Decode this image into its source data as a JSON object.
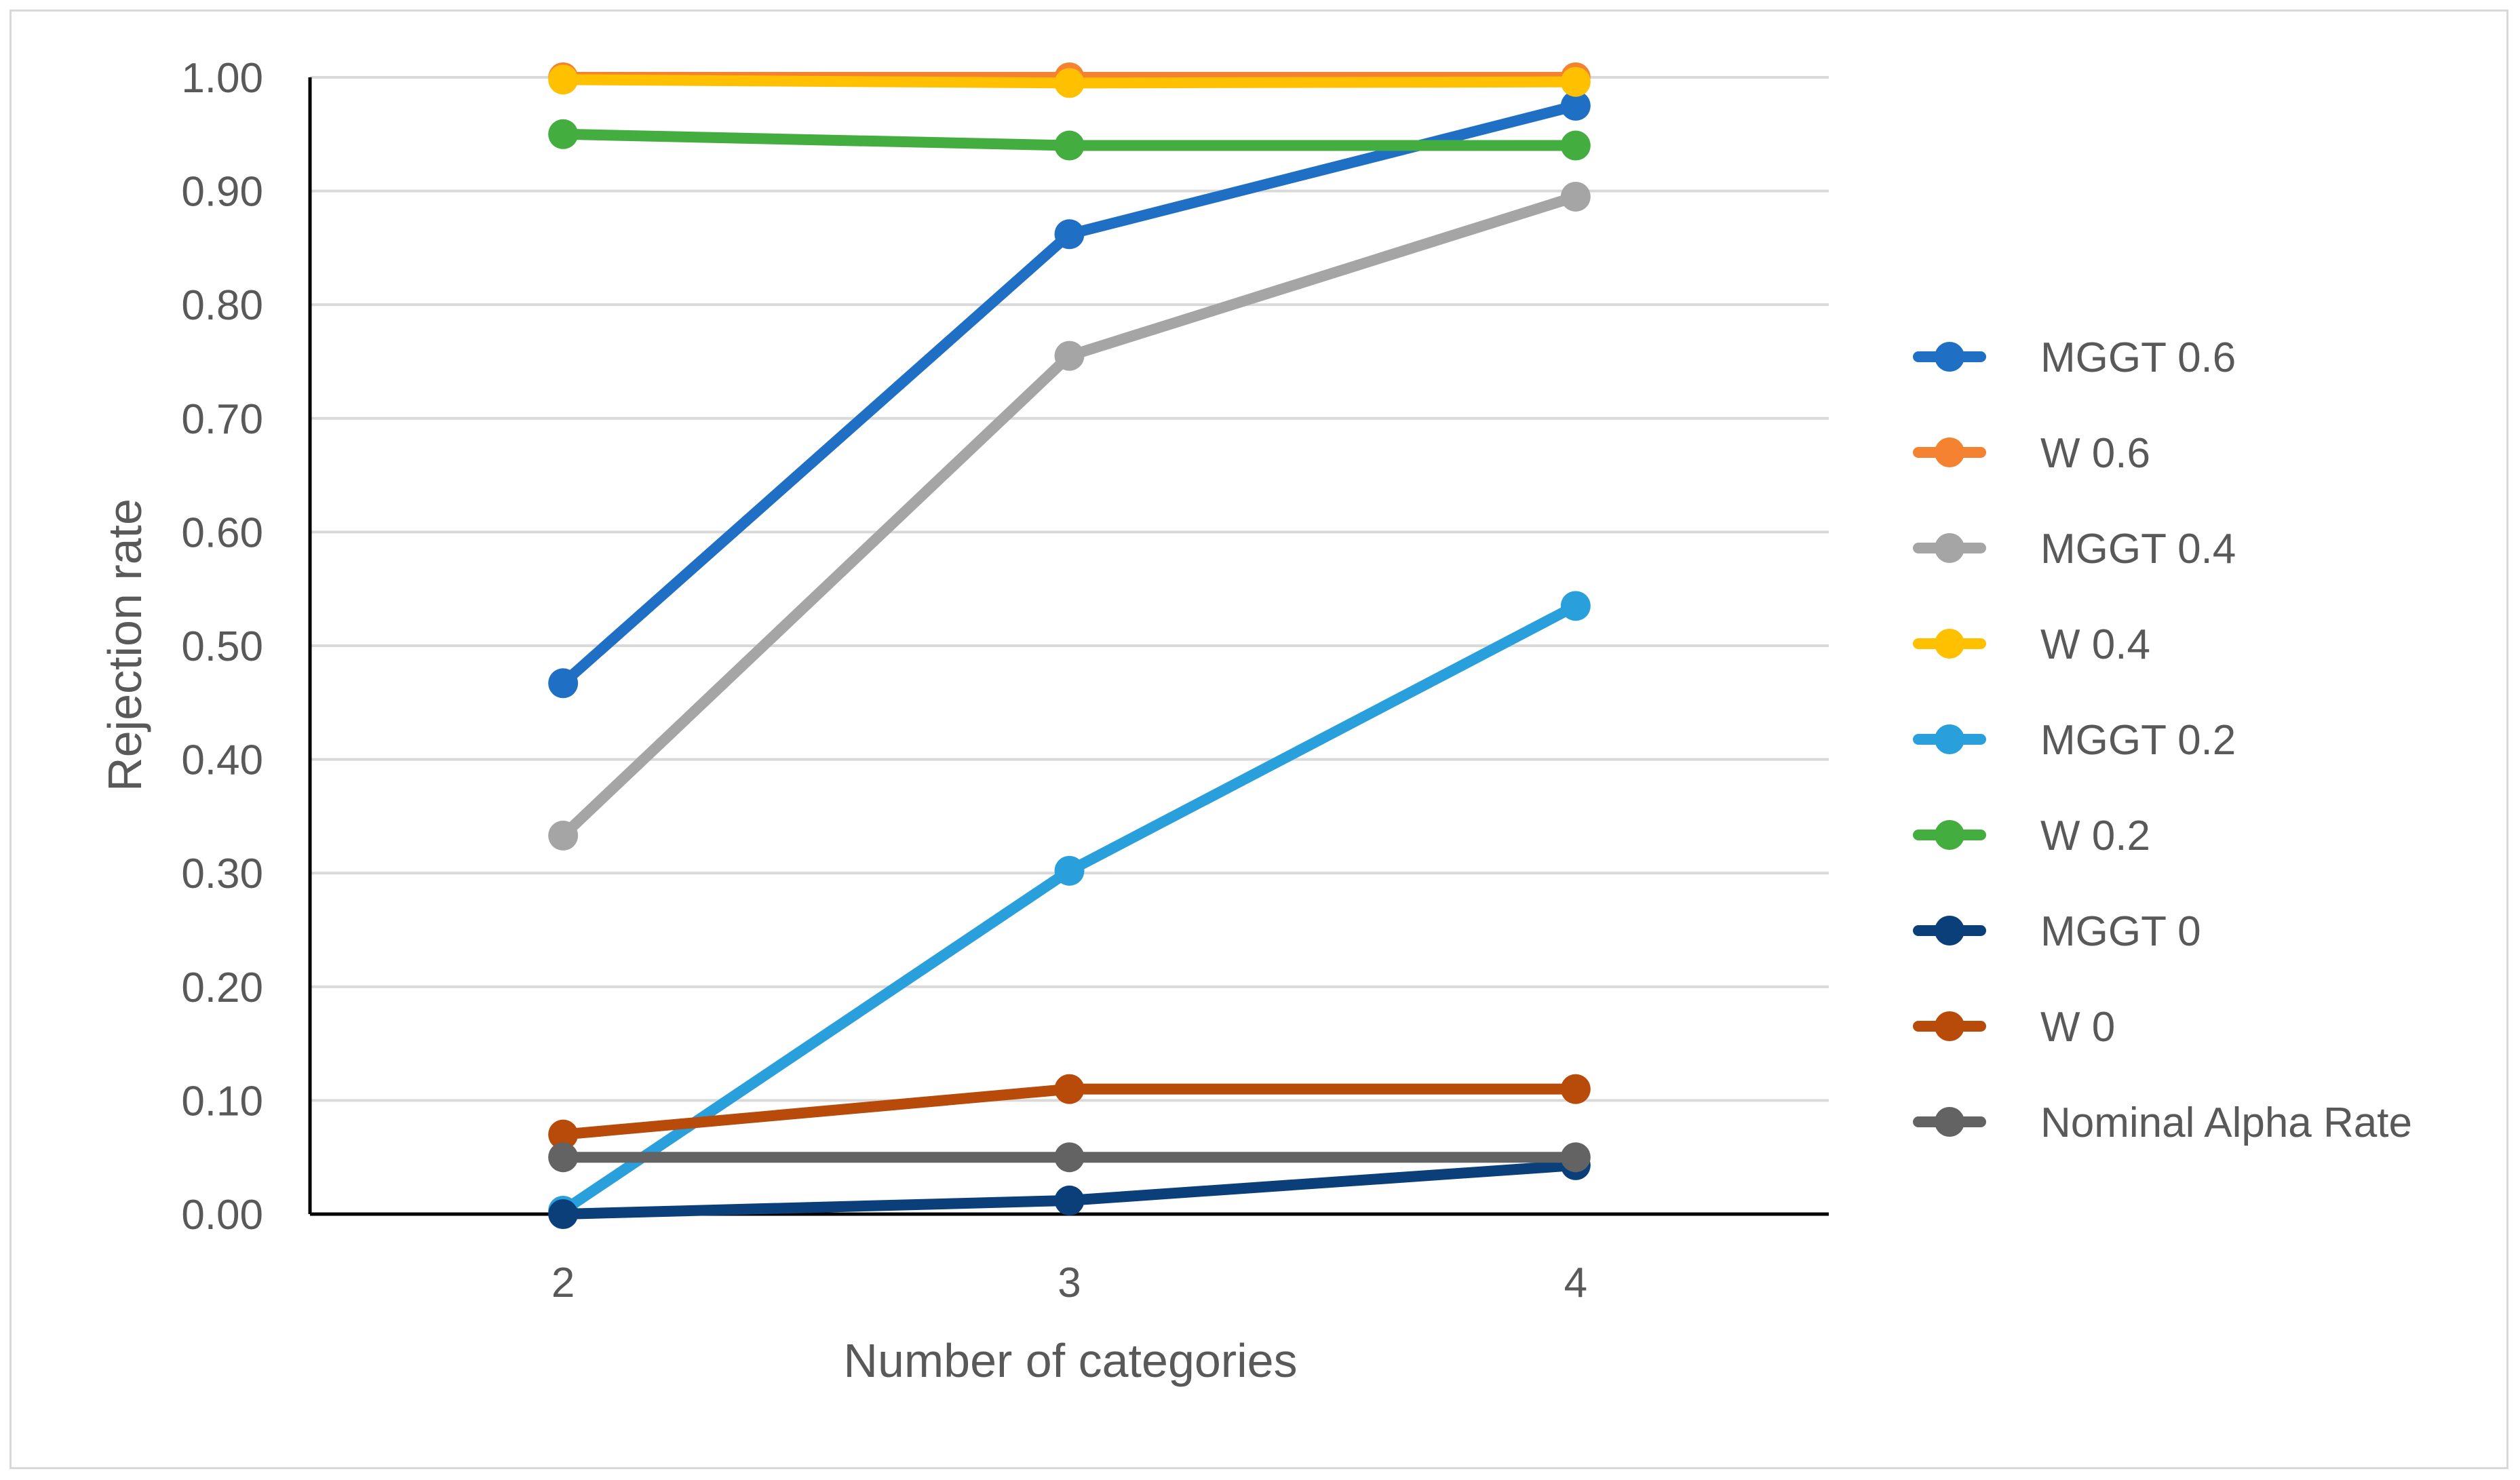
{
  "chart_data": {
    "type": "line",
    "title": "",
    "xlabel": "Number of categories",
    "ylabel": "Rejection rate",
    "categories": [
      "2",
      "3",
      "4"
    ],
    "ylim": [
      0,
      1
    ],
    "yticks": [
      "0.00",
      "0.10",
      "0.20",
      "0.30",
      "0.40",
      "0.50",
      "0.60",
      "0.70",
      "0.80",
      "0.90",
      "1.00"
    ],
    "grid": true,
    "legend_position": "right",
    "series": [
      {
        "name": "MGGT 0.6",
        "color": "#1f6fc5",
        "values": [
          0.467,
          0.862,
          0.975
        ]
      },
      {
        "name": "W 0.6",
        "color": "#f58231",
        "values": [
          1.0,
          1.0,
          1.0
        ]
      },
      {
        "name": "MGGT 0.4",
        "color": "#a5a5a5",
        "values": [
          0.333,
          0.755,
          0.895
        ]
      },
      {
        "name": "W 0.4",
        "color": "#ffc000",
        "values": [
          0.998,
          0.995,
          0.996
        ]
      },
      {
        "name": "MGGT 0.2",
        "color": "#29a0dc",
        "values": [
          0.003,
          0.302,
          0.535
        ]
      },
      {
        "name": "W 0.2",
        "color": "#43ae3f",
        "values": [
          0.95,
          0.94,
          0.94
        ]
      },
      {
        "name": "MGGT 0",
        "color": "#0b3f7a",
        "values": [
          0.0,
          0.012,
          0.043
        ]
      },
      {
        "name": "W 0",
        "color": "#b84a0a",
        "values": [
          0.07,
          0.11,
          0.11
        ]
      },
      {
        "name": "Nominal Alpha Rate",
        "color": "#636363",
        "values": [
          0.05,
          0.05,
          0.05
        ]
      }
    ]
  }
}
